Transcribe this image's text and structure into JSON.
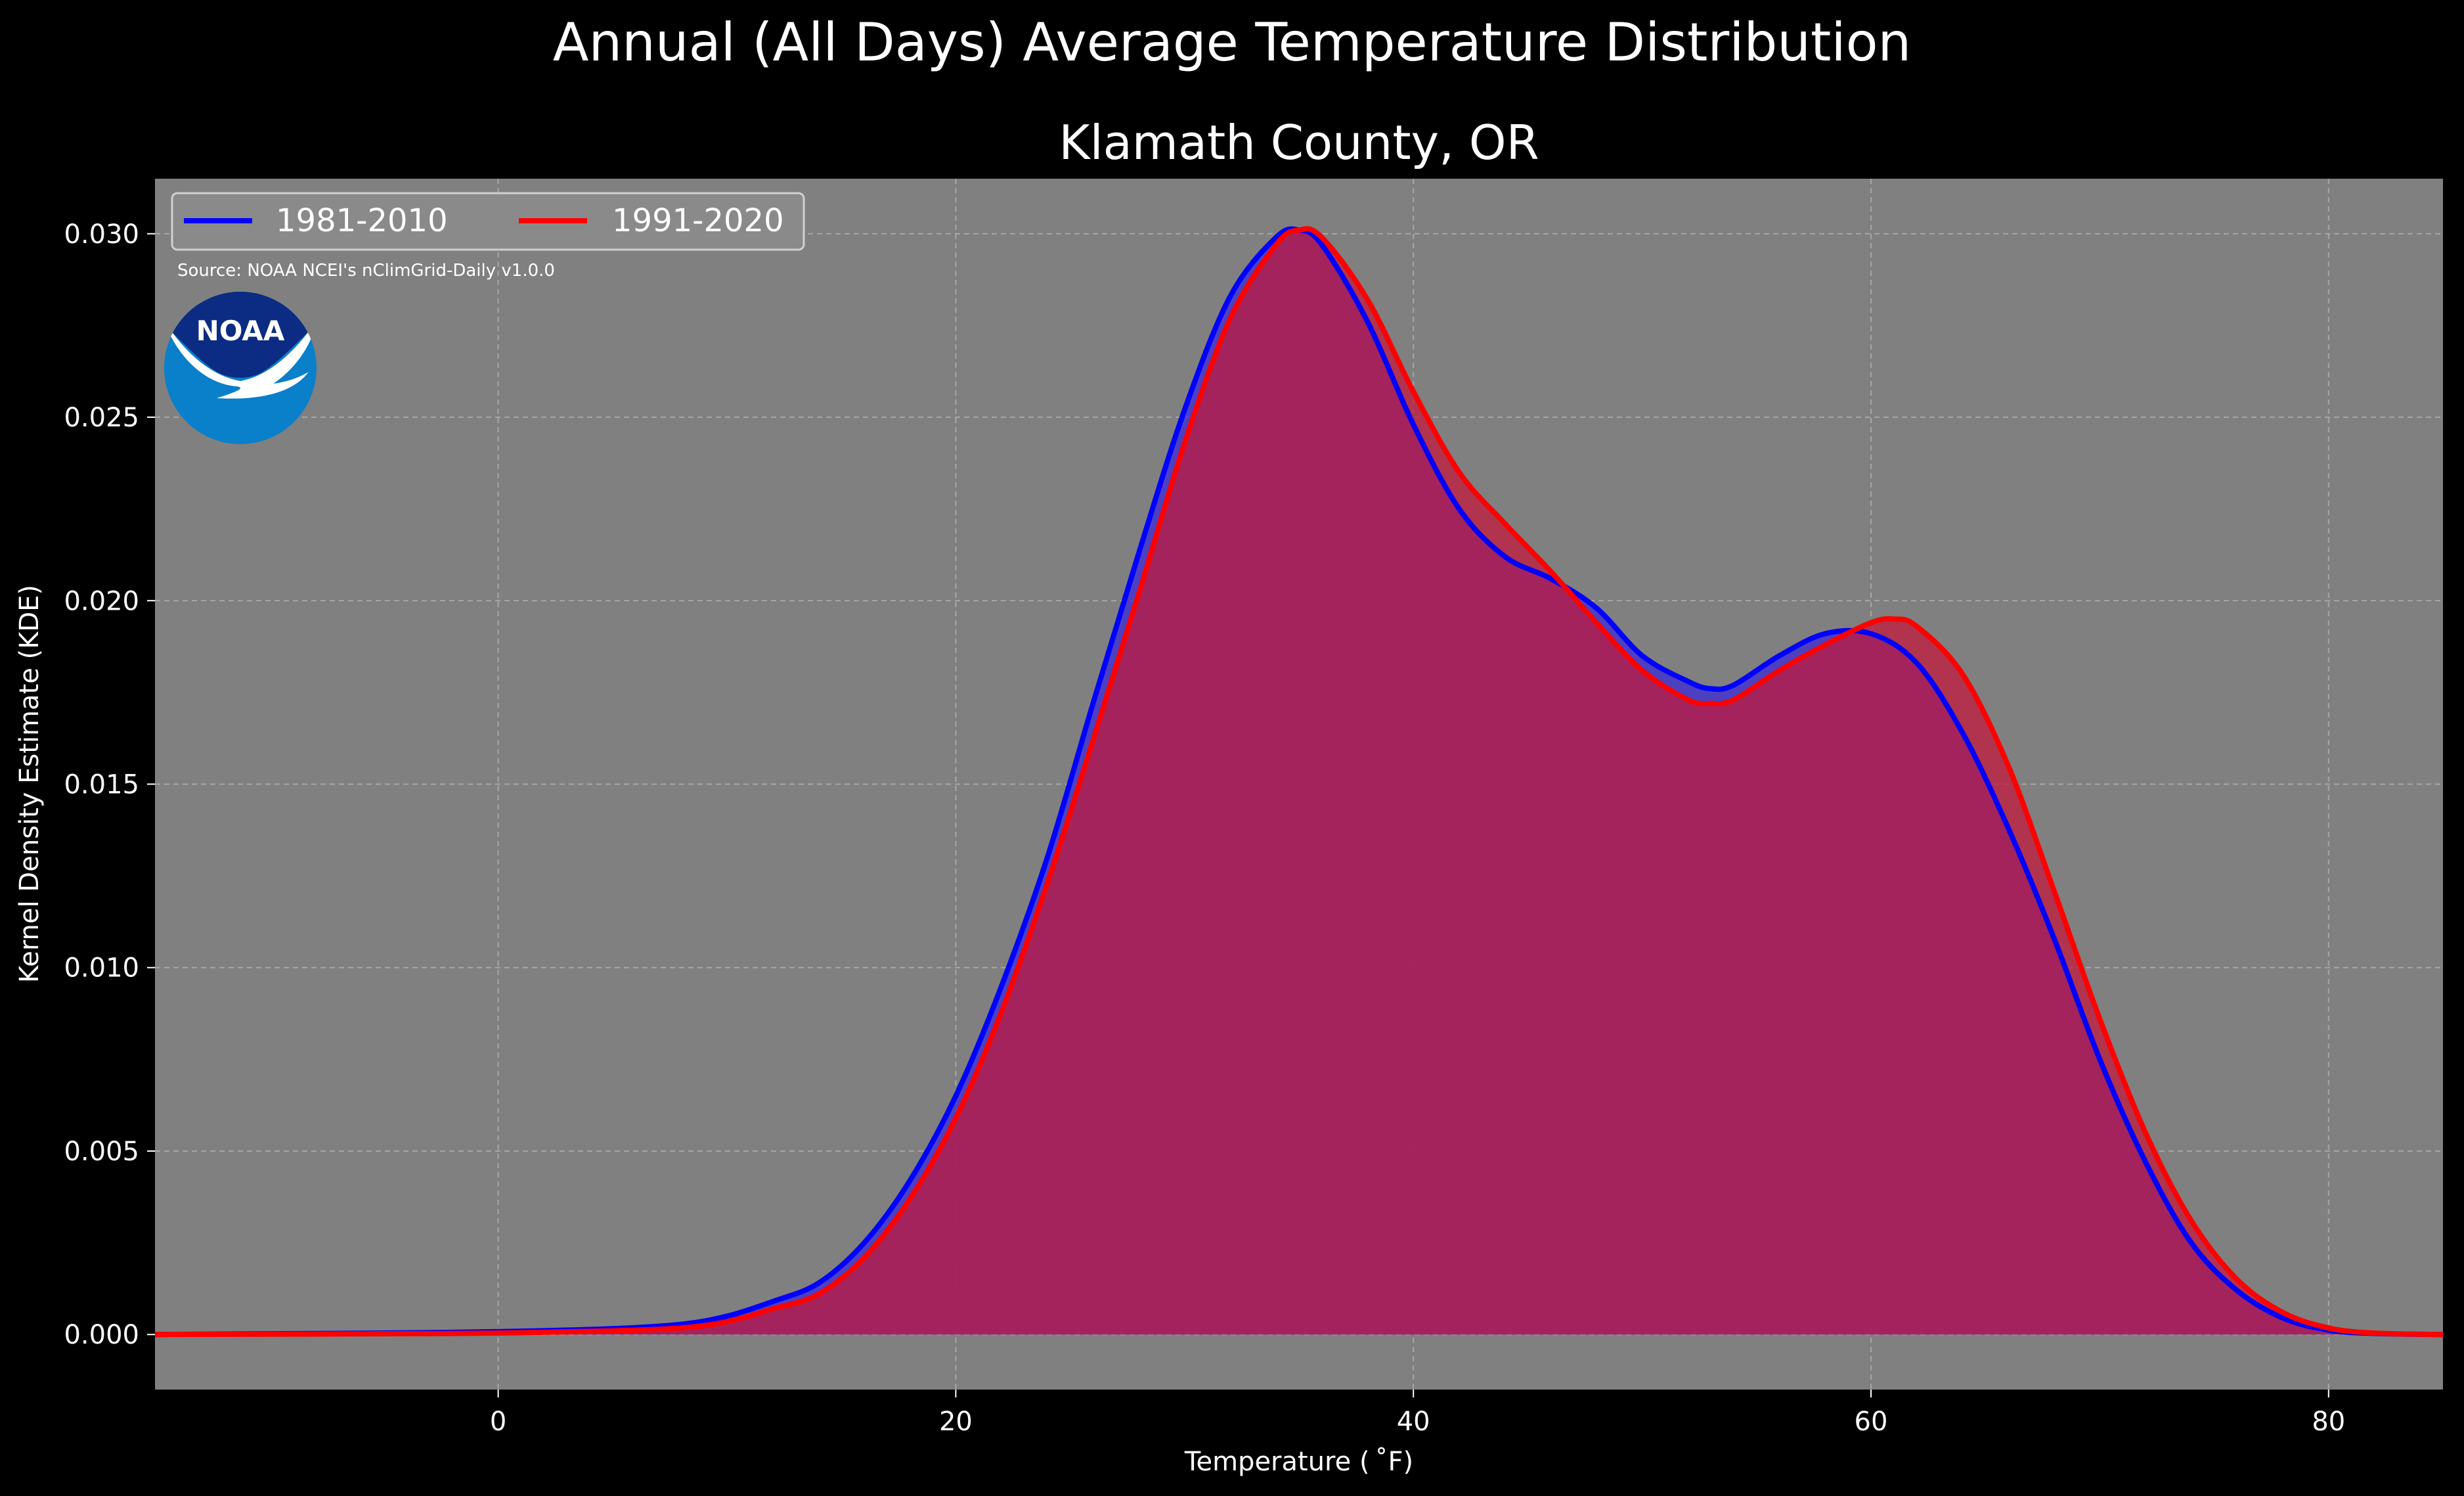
{
  "chart_data": {
    "type": "area",
    "title": "Annual (All Days) Average Temperature Distribution",
    "subtitle": "Klamath County, OR",
    "xlabel": "Temperature ($^\\circ$F)",
    "xlabel_display": "Temperature ( ˚F)",
    "ylabel": "Kernel Density Estimate (KDE)",
    "xlim": [
      -15,
      85
    ],
    "ylim": [
      -0.0015,
      0.0315
    ],
    "x_ticks": [
      0,
      20,
      40,
      60,
      80
    ],
    "x_tick_labels": [
      "0",
      "20",
      "40",
      "60",
      "80"
    ],
    "y_ticks": [
      0.0,
      0.005,
      0.01,
      0.015,
      0.02,
      0.025,
      0.03
    ],
    "y_tick_labels": [
      "0.000",
      "0.005",
      "0.010",
      "0.015",
      "0.020",
      "0.025",
      "0.030"
    ],
    "grid": true,
    "legend_position": "top-left",
    "source_note": "Source: NOAA NCEI's nClimGrid-Daily v1.0.0",
    "logo_text": "NOAA",
    "colors": {
      "background": "#000000",
      "plot_background": "#808080",
      "text": "#ffffff",
      "series_1981": "#0000ff",
      "series_1991": "#ff0000",
      "fill_1981": "#3b2bd6",
      "fill_1991": "#c21a3c",
      "overlap": "#9e1f5e"
    },
    "series": [
      {
        "name": "1981-2010",
        "color": "#0000ff",
        "x": [
          -15,
          -10,
          -5,
          0,
          5,
          8,
          10,
          12,
          14,
          16,
          18,
          20,
          22,
          24,
          26,
          28,
          30,
          32,
          34,
          35,
          36,
          38,
          40,
          42,
          44,
          46,
          48,
          50,
          52,
          53,
          54,
          56,
          58,
          60,
          62,
          64,
          66,
          68,
          70,
          72,
          74,
          76,
          78,
          80,
          82,
          85
        ],
        "y": [
          0.0,
          2e-05,
          4e-05,
          8e-05,
          0.00016,
          0.00028,
          0.0005,
          0.0009,
          0.0014,
          0.0025,
          0.0042,
          0.0065,
          0.0095,
          0.013,
          0.0172,
          0.0213,
          0.0252,
          0.0283,
          0.0299,
          0.0301,
          0.0297,
          0.0276,
          0.0248,
          0.0225,
          0.0212,
          0.0206,
          0.0198,
          0.0185,
          0.0178,
          0.0176,
          0.0177,
          0.0185,
          0.0191,
          0.0191,
          0.0183,
          0.0164,
          0.0138,
          0.0108,
          0.0075,
          0.0047,
          0.0025,
          0.0012,
          0.00045,
          0.00012,
          3e-05,
          0.0
        ]
      },
      {
        "name": "1991-2020",
        "color": "#ff0000",
        "x": [
          -15,
          -10,
          -5,
          0,
          5,
          8,
          10,
          12,
          14,
          16,
          18,
          20,
          22,
          24,
          26,
          28,
          30,
          32,
          34,
          35,
          36,
          38,
          40,
          42,
          44,
          46,
          48,
          50,
          52,
          53,
          54,
          56,
          58,
          60,
          61,
          62,
          64,
          66,
          68,
          70,
          72,
          74,
          76,
          78,
          80,
          82,
          85
        ],
        "y": [
          0.0,
          1e-05,
          2e-05,
          4e-05,
          0.0001,
          0.00018,
          0.00035,
          0.0007,
          0.0011,
          0.0021,
          0.0037,
          0.0059,
          0.0088,
          0.0123,
          0.0162,
          0.0202,
          0.0243,
          0.0277,
          0.0297,
          0.0301,
          0.0299,
          0.0282,
          0.0257,
          0.0235,
          0.0221,
          0.0208,
          0.0194,
          0.0181,
          0.0173,
          0.0172,
          0.0173,
          0.0181,
          0.0188,
          0.0194,
          0.0195,
          0.0193,
          0.018,
          0.0155,
          0.0121,
          0.0086,
          0.0055,
          0.0031,
          0.0015,
          0.0006,
          0.00018,
          4e-05,
          0.0
        ]
      }
    ]
  }
}
